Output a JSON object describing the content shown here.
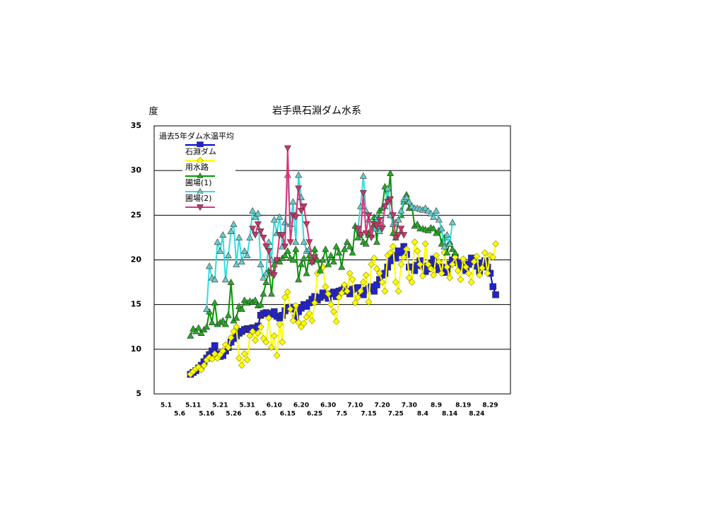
{
  "chart_data": {
    "type": "line",
    "title": "岩手県石淵ダム水系",
    "y_label": "度",
    "categories": [
      "5.1",
      null,
      null,
      null,
      null,
      "5.6",
      null,
      null,
      null,
      null,
      "5.11",
      null,
      null,
      null,
      null,
      "5.16",
      null,
      null,
      null,
      null,
      "5.21",
      null,
      null,
      null,
      null,
      "5.26",
      null,
      null,
      null,
      null,
      "5.31",
      null,
      null,
      null,
      null,
      "6.5",
      null,
      null,
      null,
      null,
      "6.10",
      null,
      null,
      null,
      null,
      "6.15",
      null,
      null,
      null,
      null,
      "6.20",
      null,
      null,
      null,
      null,
      "6.25",
      null,
      null,
      null,
      null,
      "6.30",
      null,
      null,
      null,
      null,
      "7.5",
      null,
      null,
      null,
      null,
      "7.10",
      null,
      null,
      null,
      null,
      "7.15",
      null,
      null,
      null,
      null,
      "7.20",
      null,
      null,
      null,
      null,
      "7.25",
      null,
      null,
      null,
      null,
      "7.30",
      null,
      null,
      null,
      null,
      "8.4",
      null,
      null,
      null,
      null,
      "8.9",
      null,
      null,
      null,
      null,
      "8.14",
      null,
      null,
      null,
      null,
      "8.19",
      null,
      null,
      null,
      null,
      "8.24",
      null,
      null,
      null,
      null,
      "8.29",
      null,
      null
    ],
    "ylim": [
      5,
      35
    ],
    "yticks": [
      5,
      10,
      15,
      20,
      25,
      30,
      35
    ],
    "grid": true,
    "legend": "top-left",
    "series": [
      {
        "name": "過去5年ダム水温平均",
        "color": "#0000cc",
        "marker": "square",
        "marker_color": "#2222cc",
        "values": [
          null,
          null,
          null,
          null,
          null,
          null,
          null,
          null,
          null,
          7.2,
          7.4,
          7.6,
          7.9,
          8.2,
          8.6,
          9.0,
          9.4,
          9.8,
          10.4,
          9.5,
          9.2,
          9.3,
          9.8,
          10.2,
          10.8,
          11.2,
          11.5,
          11.8,
          12.0,
          12.2,
          12.3,
          12.2,
          12.4,
          12.3,
          12.6,
          13.8,
          14.0,
          14.1,
          14.0,
          13.9,
          14.2,
          13.7,
          13.5,
          13.8,
          14.3,
          14.6,
          14.7,
          14.5,
          13.5,
          14.2,
          14.6,
          15.0,
          14.8,
          15.2,
          15.6,
          15.9,
          15.5,
          15.8,
          16.3,
          16.0,
          15.7,
          16.2,
          16.4,
          15.9,
          16.5,
          16.6,
          16.8,
          16.5,
          16.2,
          16.7,
          16.8,
          16.9,
          16.3,
          16.1,
          16.6,
          16.8,
          17.0,
          16.5,
          17.2,
          17.8,
          18.3,
          18.5,
          19.2,
          19.9,
          20.5,
          20.2,
          21.0,
          20.8,
          21.5,
          20.6,
          19.2,
          19.2,
          18.8,
          19.4,
          19.9,
          19.3,
          18.7,
          19.0,
          19.6,
          20.1,
          19.4,
          18.9,
          19.2,
          18.6,
          18.8,
          19.5,
          20.0,
          20.3,
          19.7,
          19.1,
          19.4,
          18.8,
          19.5,
          20.2,
          19.8,
          19.3,
          18.7,
          19.6,
          19.9,
          19.2,
          18.5,
          17.0,
          16.1
        ]
      },
      {
        "name": "石淵ダム",
        "color": "#ffff00",
        "marker": "diamond",
        "marker_color": "#ffff00",
        "values": [
          null,
          null,
          null,
          null,
          null,
          null,
          null,
          null,
          null,
          7.2,
          7.5,
          7.8,
          8.0,
          7.7,
          8.2,
          8.8,
          9.1,
          8.9,
          9.5,
          9.0,
          9.4,
          9.8,
          10.5,
          10.2,
          11.3,
          12.0,
          12.5,
          9.0,
          8.2,
          9.5,
          8.8,
          11.5,
          12.0,
          11.0,
          11.8,
          12.5,
          11.2,
          10.8,
          13.5,
          10.2,
          11.5,
          9.3,
          12.8,
          10.8,
          15.8,
          16.4,
          14.5,
          13.2,
          14.9,
          13.0,
          12.5,
          12.9,
          13.6,
          14.0,
          13.2,
          15.2,
          18.5,
          18.8,
          19.2,
          17.0,
          16.2,
          15.0,
          14.2,
          13.1,
          15.8,
          16.3,
          17.2,
          16.5,
          18.5,
          17.8,
          15.2,
          15.8,
          16.5,
          17.5,
          18.3,
          15.3,
          19.5,
          20.2,
          19.0,
          18.5,
          17.5,
          16.5,
          20.5,
          20.8,
          21.5,
          17.5,
          16.5,
          19.5,
          20.3,
          21.2,
          18.0,
          17.5,
          22.0,
          21.0,
          19.5,
          18.2,
          21.8,
          19.5,
          19.0,
          18.3,
          20.5,
          19.8,
          18.5,
          20.8,
          19.2,
          18.0,
          19.5,
          20.3,
          18.8,
          17.8,
          20.1,
          19.2,
          18.5,
          17.5,
          19.8,
          20.4,
          18.3,
          19.1,
          20.8,
          18.5,
          20.5,
          20.3,
          21.8
        ]
      },
      {
        "name": "用水路",
        "color": "#009900",
        "marker": "triangle-up",
        "marker_color": "#22aa22",
        "values": [
          null,
          null,
          null,
          null,
          null,
          null,
          null,
          null,
          null,
          11.5,
          12.3,
          12.0,
          12.4,
          11.8,
          12.2,
          12.5,
          14.2,
          13.0,
          15.2,
          12.8,
          13.0,
          13.2,
          12.8,
          13.8,
          17.5,
          13.2,
          13.5,
          14.8,
          14.5,
          15.5,
          15.2,
          15.4,
          15.3,
          15.5,
          14.9,
          15.0,
          16.2,
          17.5,
          18.8,
          16.2,
          19.5,
          20.0,
          19.8,
          20.2,
          20.5,
          21.0,
          20.2,
          20.0,
          21.2,
          17.8,
          19.5,
          20.2,
          18.5,
          20.5,
          19.8,
          21.2,
          20.0,
          18.8,
          20.0,
          21.2,
          19.5,
          20.5,
          19.8,
          21.5,
          20.8,
          19.2,
          21.2,
          22.0,
          21.5,
          20.8,
          23.8,
          22.5,
          23.0,
          22.0,
          21.8,
          22.8,
          23.5,
          24.8,
          22.0,
          25.5,
          25.8,
          28.2,
          26.5,
          29.7,
          23.0,
          22.5,
          24.5,
          25.0,
          26.5,
          27.3,
          25.8,
          26.0,
          23.8,
          24.0,
          23.5,
          23.5,
          23.4,
          23.3,
          23.6,
          23.5,
          23.0,
          23.3,
          21.8,
          22.5,
          20.8,
          22.0,
          21.2,
          20.8,
          null,
          null,
          null,
          null,
          null,
          null,
          null,
          null,
          null,
          null,
          null,
          null,
          null,
          null,
          null
        ]
      },
      {
        "name": "圃場(1)",
        "color": "#33dddd",
        "marker": "triangle-up",
        "marker_color": "#66cccc",
        "values": [
          null,
          null,
          null,
          null,
          null,
          null,
          null,
          null,
          null,
          null,
          null,
          null,
          null,
          null,
          null,
          14.5,
          19.3,
          18.0,
          17.8,
          22.0,
          21.0,
          22.8,
          17.8,
          20.5,
          23.2,
          24.0,
          19.5,
          22.5,
          19.8,
          21.0,
          20.5,
          22.5,
          25.5,
          24.8,
          25.2,
          19.5,
          18.0,
          18.5,
          22.0,
          20.0,
          24.5,
          23.0,
          24.8,
          21.5,
          24.2,
          29.5,
          24.0,
          26.5,
          22.0,
          29.5,
          27.0,
          22.0,
          21.0,
          21.2,
          null,
          null,
          null,
          null,
          null,
          null,
          null,
          null,
          null,
          null,
          null,
          null,
          null,
          null,
          null,
          null,
          null,
          23.5,
          26.0,
          29.4,
          25.5,
          24.5,
          22.8,
          23.5,
          24.8,
          23.2,
          24.0,
          26.0,
          28.0,
          25.0,
          24.0,
          24.2,
          24.5,
          25.5,
          26.8,
          27.0,
          26.5,
          26.0,
          25.8,
          25.8,
          25.7,
          25.6,
          25.8,
          25.5,
          25.2,
          24.8,
          25.5,
          24.5,
          23.5,
          21.5,
          22.8,
          21.8,
          24.2,
          null,
          null,
          null,
          null,
          null,
          null,
          null,
          null,
          null,
          null,
          null,
          null,
          null,
          null,
          null,
          null
        ]
      },
      {
        "name": "圃場(2)",
        "color": "#dd3377",
        "marker": "triangle-down",
        "marker_color": "#cc3366",
        "values": [
          null,
          null,
          null,
          null,
          null,
          null,
          null,
          null,
          null,
          null,
          null,
          null,
          null,
          null,
          null,
          null,
          null,
          null,
          null,
          null,
          null,
          null,
          null,
          null,
          null,
          null,
          null,
          null,
          null,
          null,
          null,
          null,
          23.5,
          22.8,
          24.0,
          23.2,
          22.5,
          21.5,
          21.0,
          18.5,
          18.3,
          20.0,
          22.8,
          22.8,
          21.5,
          32.5,
          22.0,
          25.0,
          24.8,
          28.0,
          25.5,
          26.0,
          24.0,
          22.0,
          19.7,
          20.3,
          null,
          null,
          null,
          null,
          null,
          null,
          null,
          null,
          null,
          null,
          null,
          null,
          null,
          null,
          null,
          23.5,
          22.8,
          27.5,
          23.0,
          25.0,
          22.5,
          24.0,
          23.8,
          24.5,
          23.5,
          26.0,
          26.5,
          26.8,
          25.0,
          22.5,
          22.8,
          23.5,
          22.8,
          null,
          null,
          null,
          null,
          null,
          null,
          null,
          null,
          null,
          null,
          null,
          null,
          null,
          null,
          null,
          null,
          null,
          null,
          null,
          null,
          null,
          null,
          null,
          null,
          null,
          null,
          null,
          null,
          null,
          null,
          null,
          null,
          null,
          null
        ]
      }
    ]
  }
}
